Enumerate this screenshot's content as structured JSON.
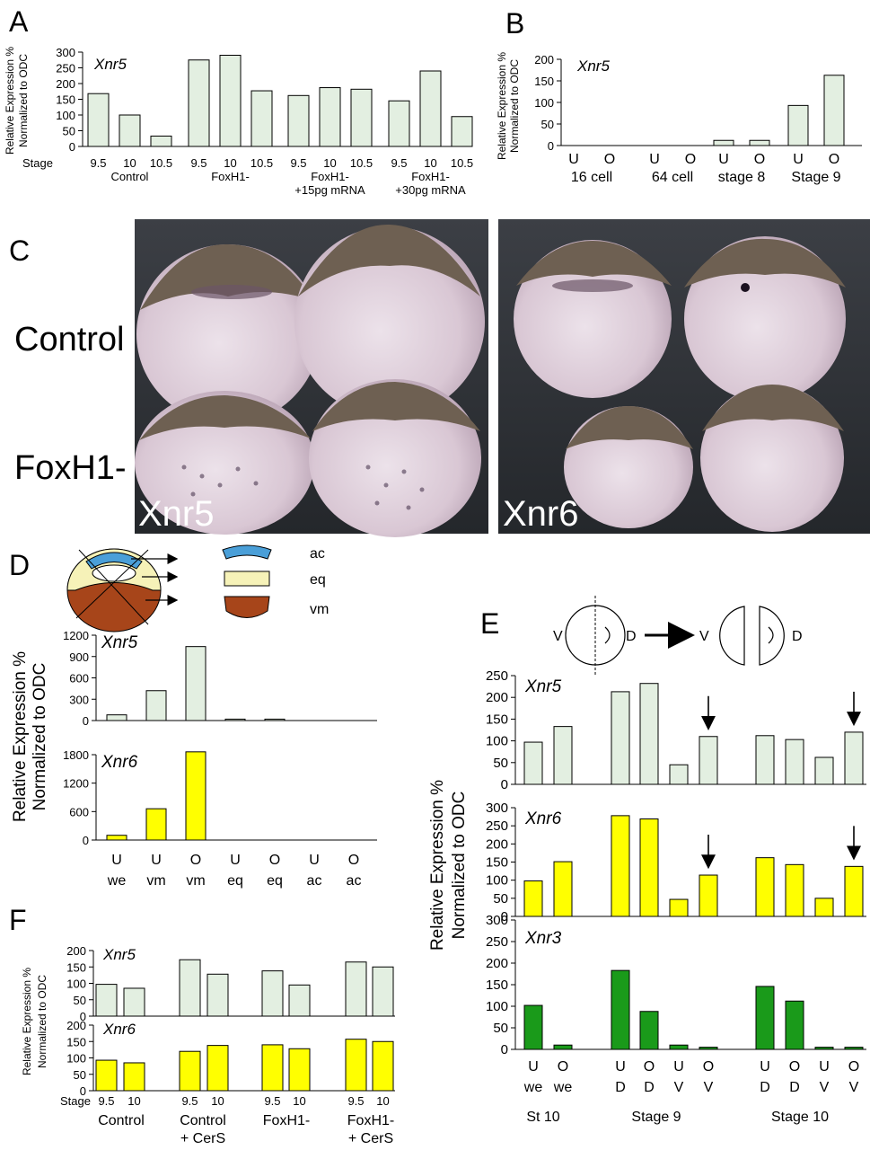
{
  "panels": {
    "A": "A",
    "B": "B",
    "C": "C",
    "D": "D",
    "E": "E",
    "F": "F"
  },
  "panel_c": {
    "row_labels": [
      "Control",
      "FoxH1-"
    ],
    "photo_labels": [
      "Xnr5",
      "Xnr6"
    ]
  },
  "panel_d_legend": [
    {
      "label": "ac",
      "color": "#4a9fd8"
    },
    {
      "label": "eq",
      "color": "#f6f2b8"
    },
    {
      "label": "vm",
      "color": "#a7451a"
    }
  ],
  "panel_e_schema": {
    "v": "V",
    "d": "D"
  },
  "colors": {
    "light_green": "#e3efe1",
    "yellow": "#ffff00",
    "dark_green": "#1a9a1a",
    "bar_stroke": "#000000"
  },
  "chart_data": [
    {
      "panel": "A",
      "type": "bar",
      "title": "Xnr5",
      "ylabel": "Relative Expression % Normalized to ODC",
      "ylim": [
        0,
        300
      ],
      "yticks": [
        0,
        50,
        100,
        150,
        200,
        250,
        300
      ],
      "stage_label": "Stage",
      "groups": [
        {
          "name": "Control",
          "name2": "",
          "categories": [
            "9.5",
            "10",
            "10.5"
          ],
          "values": [
            168,
            100,
            33
          ]
        },
        {
          "name": "FoxH1-",
          "name2": "",
          "categories": [
            "9.5",
            "10",
            "10.5"
          ],
          "values": [
            275,
            290,
            177
          ]
        },
        {
          "name": "FoxH1-",
          "name2": "+15pg mRNA",
          "categories": [
            "9.5",
            "10",
            "10.5"
          ],
          "values": [
            162,
            187,
            182
          ]
        },
        {
          "name": "FoxH1-",
          "name2": "+30pg mRNA",
          "categories": [
            "9.5",
            "10",
            "10.5"
          ],
          "values": [
            145,
            240,
            95
          ]
        }
      ],
      "color": "#e3efe1"
    },
    {
      "panel": "B",
      "type": "bar",
      "title": "Xnr5",
      "ylabel": "Relative Expression % Normalized to ODC",
      "ylim": [
        0,
        200
      ],
      "yticks": [
        0,
        50,
        100,
        150,
        200
      ],
      "groups": [
        {
          "name": "16 cell",
          "categories": [
            "U",
            "O"
          ],
          "values": [
            0,
            0
          ]
        },
        {
          "name": "64 cell",
          "categories": [
            "U",
            "O"
          ],
          "values": [
            0,
            0
          ]
        },
        {
          "name": "stage 8",
          "categories": [
            "U",
            "O"
          ],
          "values": [
            12,
            12
          ]
        },
        {
          "name": "Stage 9",
          "categories": [
            "U",
            "O"
          ],
          "values": [
            93,
            163
          ]
        }
      ],
      "color": "#e3efe1"
    },
    {
      "panel": "D",
      "type": "bar",
      "ylabel": "Relative Expression % Normalized to ODC",
      "categories_top": [
        "U",
        "U",
        "O",
        "U",
        "O",
        "U",
        "O"
      ],
      "categories_bottom": [
        "we",
        "vm",
        "vm",
        "eq",
        "eq",
        "ac",
        "ac"
      ],
      "series": [
        {
          "name": "Xnr5",
          "values": [
            80,
            420,
            1040,
            20,
            20,
            0,
            0
          ],
          "ylim": [
            0,
            1200
          ],
          "yticks": [
            0,
            300,
            600,
            900,
            1200
          ],
          "color": "#e3efe1"
        },
        {
          "name": "Xnr6",
          "values": [
            100,
            660,
            1860,
            0,
            0,
            0,
            0
          ],
          "ylim": [
            0,
            1800
          ],
          "yticks": [
            0,
            600,
            1200,
            1800
          ],
          "color": "#ffff00"
        }
      ]
    },
    {
      "panel": "E",
      "type": "bar",
      "ylabel": "Relative Expression % Normalized to ODC",
      "categories_top": [
        "U",
        "O",
        "U",
        "O",
        "U",
        "O",
        "U",
        "O",
        "U",
        "O"
      ],
      "categories_bottom": [
        "we",
        "we",
        "D",
        "D",
        "V",
        "V",
        "D",
        "D",
        "V",
        "V"
      ],
      "groups": [
        "St 10",
        "Stage 9",
        "Stage 10"
      ],
      "arrow_bars": [
        5,
        9
      ],
      "series": [
        {
          "name": "Xnr5",
          "values": [
            97,
            133,
            213,
            232,
            45,
            110,
            112,
            103,
            62,
            120
          ],
          "ylim": [
            0,
            250
          ],
          "yticks": [
            0,
            50,
            100,
            150,
            200,
            250
          ],
          "color": "#e3efe1"
        },
        {
          "name": "Xnr6",
          "values": [
            98,
            151,
            278,
            269,
            47,
            114,
            162,
            143,
            50,
            138
          ],
          "ylim": [
            0,
            300
          ],
          "yticks": [
            0,
            50,
            100,
            150,
            200,
            250,
            300
          ],
          "color": "#ffff00"
        },
        {
          "name": "Xnr3",
          "values": [
            102,
            10,
            183,
            88,
            10,
            5,
            146,
            112,
            5,
            5
          ],
          "ylim": [
            0,
            300
          ],
          "yticks": [
            0,
            50,
            100,
            150,
            200,
            250,
            300
          ],
          "color": "#1a9a1a"
        }
      ]
    },
    {
      "panel": "F",
      "type": "bar",
      "ylabel": "Relative Expression % Normalized to ODC",
      "stage_label": "Stage",
      "categories": [
        "9.5",
        "10",
        "9.5",
        "10",
        "9.5",
        "10",
        "9.5",
        "10"
      ],
      "groups": [
        {
          "name": "Control",
          "name2": ""
        },
        {
          "name": "Control",
          "name2": "+ CerS"
        },
        {
          "name": "FoxH1-",
          "name2": ""
        },
        {
          "name": "FoxH1-",
          "name2": "+ CerS"
        }
      ],
      "series": [
        {
          "name": "Xnr5",
          "values": [
            97,
            85,
            172,
            128,
            138,
            95,
            165,
            150
          ],
          "ylim": [
            0,
            200
          ],
          "yticks": [
            0,
            50,
            100,
            150,
            200
          ],
          "color": "#e3efe1"
        },
        {
          "name": "Xnr6",
          "values": [
            93,
            85,
            120,
            138,
            140,
            128,
            157,
            150
          ],
          "ylim": [
            0,
            200
          ],
          "yticks": [
            0,
            50,
            100,
            150,
            200
          ],
          "color": "#ffff00"
        }
      ]
    }
  ]
}
